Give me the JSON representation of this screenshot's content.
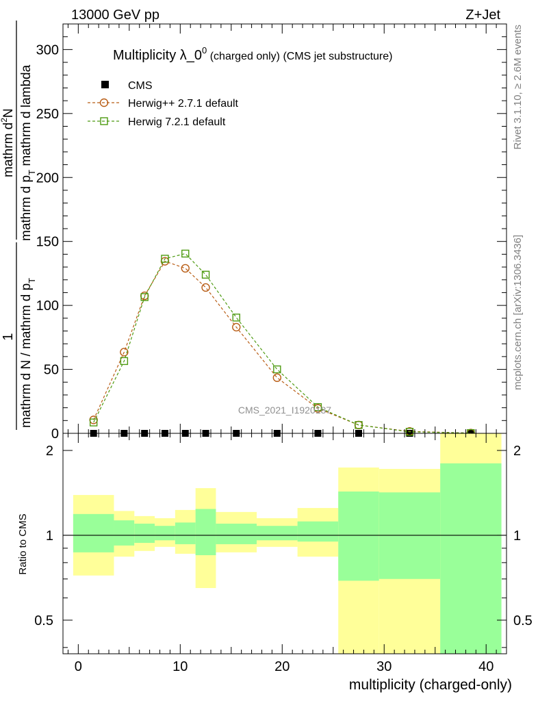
{
  "header": {
    "left_label": "13000 GeV pp",
    "right_label": "Z+Jet"
  },
  "side_labels": {
    "rivet": "Rivet 3.1.10, ≥ 2.6M events",
    "mcplots": "mcplots.cern.ch [arXiv:1306.3436]"
  },
  "watermark": "CMS_2021_I1920187",
  "chart_data": [
    {
      "type": "line",
      "title_main": "Multiplicity λ_0",
      "title_sup": "0",
      "title_tail": " (charged only) (CMS jet substructure)",
      "ylabel": {
        "one_top": "1",
        "one_bottom": "mathrm d N / mathrm d p",
        "one_bottom_sub": "T",
        "two_top": "mathrm d",
        "two_top_sup": "2",
        "two_top_tail": "N",
        "two_bottom": "mathrm d p",
        "two_bottom_sub": "T",
        "two_bottom_tail": " mathrm d lambda"
      },
      "ylim": [
        0,
        320
      ],
      "yticks": [
        0,
        50,
        100,
        150,
        200,
        250,
        300
      ],
      "xlim": [
        -1.5,
        42
      ],
      "legend_position": "top-left",
      "series": [
        {
          "name": "CMS",
          "marker": "filled-square",
          "color": "#000000",
          "x": [
            1.5,
            4.5,
            6.5,
            8.5,
            10.5,
            12.5,
            15.5,
            19.5,
            23.5,
            27.5,
            32.5,
            38.5
          ],
          "values": [
            0,
            0,
            0,
            0,
            0,
            0,
            0,
            0,
            0,
            0,
            0,
            0
          ]
        },
        {
          "name": "Herwig++ 2.7.1 default",
          "marker": "open-circle",
          "color": "#b85c14",
          "x": [
            1.5,
            4.5,
            6.5,
            8.5,
            10.5,
            12.5,
            15.5,
            19.5,
            23.5,
            27.5,
            32.5,
            38.5
          ],
          "values": [
            10.5,
            63.5,
            107.5,
            134.5,
            129,
            114,
            83,
            43.5,
            19.5,
            6.5,
            1.5,
            0.2
          ]
        },
        {
          "name": "Herwig 7.2.1 default",
          "marker": "open-square",
          "color": "#4d9a10",
          "x": [
            1.5,
            4.5,
            6.5,
            8.5,
            10.5,
            12.5,
            15.5,
            19.5,
            23.5,
            27.5,
            32.5,
            38.5
          ],
          "values": [
            8.5,
            56.5,
            106.5,
            136.5,
            140.5,
            124,
            90.5,
            50,
            20.5,
            6.5,
            1.2,
            0.2
          ]
        }
      ]
    },
    {
      "type": "area",
      "ylabel": "Ratio to CMS",
      "xlabel": "multiplicity (charged-only)",
      "scale": "log",
      "ylim": [
        0.38,
        2.3
      ],
      "yticks": [
        0.5,
        1,
        2
      ],
      "xticks": [
        0,
        10,
        20,
        30,
        40
      ],
      "xlim": [
        -1.5,
        42
      ],
      "reference_line": 1,
      "bands": [
        {
          "x_low": -0.5,
          "x_high": 3.5,
          "inner": [
            0.87,
            1.19
          ],
          "outer": [
            0.72,
            1.39
          ]
        },
        {
          "x_low": 3.5,
          "x_high": 5.5,
          "inner": [
            0.92,
            1.13
          ],
          "outer": [
            0.84,
            1.22
          ]
        },
        {
          "x_low": 5.5,
          "x_high": 7.5,
          "inner": [
            0.94,
            1.1
          ],
          "outer": [
            0.88,
            1.17
          ]
        },
        {
          "x_low": 7.5,
          "x_high": 9.5,
          "inner": [
            0.96,
            1.08
          ],
          "outer": [
            0.91,
            1.15
          ]
        },
        {
          "x_low": 9.5,
          "x_high": 11.5,
          "inner": [
            0.93,
            1.11
          ],
          "outer": [
            0.86,
            1.23
          ]
        },
        {
          "x_low": 11.5,
          "x_high": 13.5,
          "inner": [
            0.85,
            1.24
          ],
          "outer": [
            0.65,
            1.47
          ]
        },
        {
          "x_low": 13.5,
          "x_high": 17.5,
          "inner": [
            0.93,
            1.1
          ],
          "outer": [
            0.87,
            1.21
          ]
        },
        {
          "x_low": 17.5,
          "x_high": 21.5,
          "inner": [
            0.96,
            1.08
          ],
          "outer": [
            0.91,
            1.15
          ]
        },
        {
          "x_low": 21.5,
          "x_high": 25.5,
          "inner": [
            0.95,
            1.12
          ],
          "outer": [
            0.84,
            1.25
          ]
        },
        {
          "x_low": 25.5,
          "x_high": 29.5,
          "inner": [
            0.69,
            1.43
          ],
          "outer": [
            0.3,
            1.74
          ]
        },
        {
          "x_low": 29.5,
          "x_high": 35.5,
          "inner": [
            0.7,
            1.42
          ],
          "outer": [
            0.3,
            1.72
          ]
        },
        {
          "x_low": 35.5,
          "x_high": 41.5,
          "inner": [
            0.3,
            1.8
          ],
          "outer": [
            0.3,
            3.0
          ]
        }
      ],
      "colors": {
        "inner": "#99ff99",
        "outer": "#ffff99"
      }
    }
  ]
}
